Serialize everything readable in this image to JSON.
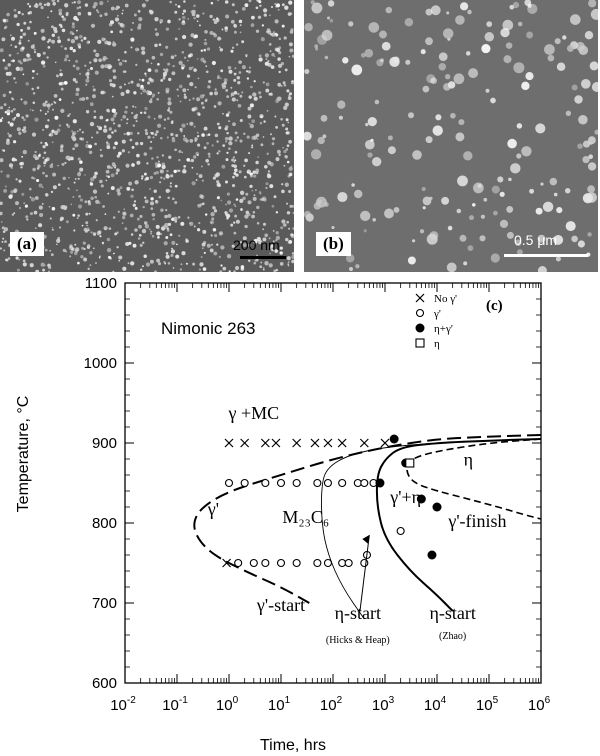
{
  "panels": {
    "a": {
      "label": "(a)",
      "scale_label": "200 nm"
    },
    "b": {
      "label": "(b)",
      "scale_label": "0.5 μm"
    },
    "c": {
      "label": "(c)"
    }
  },
  "chart_data": {
    "type": "scatter",
    "title": "Nimonic 263",
    "xlabel": "Time, hrs",
    "ylabel": "Temperature, °C",
    "xscale": "log",
    "xlim": [
      0.01,
      1000000
    ],
    "ylim": [
      600,
      1100
    ],
    "x_ticks": [
      "10-2",
      "10-1",
      "100",
      "101",
      "102",
      "103",
      "104",
      "105",
      "106"
    ],
    "y_ticks": [
      600,
      700,
      800,
      900,
      1000,
      1100
    ],
    "legend": {
      "placement": "top-right",
      "entries": [
        {
          "symbol": "×",
          "label": "No γ'"
        },
        {
          "symbol": "○",
          "label": "γ'"
        },
        {
          "symbol": "●",
          "label": "η+γ'"
        },
        {
          "symbol": "□",
          "label": "η"
        }
      ]
    },
    "series": [
      {
        "name": "No γ'",
        "marker": "x",
        "points": [
          [
            1,
            900
          ],
          [
            2,
            900
          ],
          [
            5,
            900
          ],
          [
            8,
            900
          ],
          [
            20,
            900
          ],
          [
            45,
            900
          ],
          [
            80,
            900
          ],
          [
            150,
            900
          ],
          [
            400,
            900
          ],
          [
            1000,
            900
          ],
          [
            0.9,
            750
          ]
        ]
      },
      {
        "name": "γ'",
        "marker": "circle",
        "points": [
          [
            1,
            850
          ],
          [
            2,
            850
          ],
          [
            5,
            850
          ],
          [
            10,
            850
          ],
          [
            20,
            850
          ],
          [
            50,
            850
          ],
          [
            80,
            850
          ],
          [
            150,
            850
          ],
          [
            300,
            850
          ],
          [
            400,
            850
          ],
          [
            600,
            850
          ],
          [
            1.5,
            750
          ],
          [
            3,
            750
          ],
          [
            5,
            750
          ],
          [
            10,
            750
          ],
          [
            20,
            750
          ],
          [
            50,
            750
          ],
          [
            80,
            750
          ],
          [
            150,
            750
          ],
          [
            200,
            750
          ],
          [
            400,
            750
          ],
          [
            450,
            760
          ],
          [
            2000,
            790
          ]
        ]
      },
      {
        "name": "η+γ'",
        "marker": "filled-circle",
        "points": [
          [
            1500,
            905
          ],
          [
            2500,
            875
          ],
          [
            800,
            850
          ],
          [
            5000,
            830
          ],
          [
            10000,
            820
          ],
          [
            8000,
            760
          ]
        ]
      },
      {
        "name": "η",
        "marker": "square",
        "points": [
          [
            3000,
            875
          ]
        ]
      }
    ],
    "curves": [
      {
        "label": "γ'-start",
        "style": "dashed",
        "points": [
          [
            1000000,
            910
          ],
          [
            100000,
            908
          ],
          [
            10000,
            905
          ],
          [
            1000,
            895
          ],
          [
            100,
            880
          ],
          [
            10,
            860
          ],
          [
            1,
            840
          ],
          [
            0.3,
            820
          ],
          [
            0.2,
            800
          ],
          [
            0.25,
            780
          ],
          [
            0.5,
            760
          ],
          [
            2,
            740
          ],
          [
            10,
            720
          ],
          [
            35,
            700
          ]
        ]
      },
      {
        "label": "η-start (Hicks & Heap)",
        "style": "thin-solid",
        "points": [
          [
            1000000,
            905
          ],
          [
            100000,
            903
          ],
          [
            10000,
            900
          ],
          [
            1000,
            895
          ],
          [
            200,
            885
          ],
          [
            80,
            870
          ],
          [
            60,
            850
          ],
          [
            60,
            800
          ],
          [
            80,
            760
          ],
          [
            150,
            720
          ],
          [
            400,
            680
          ]
        ]
      },
      {
        "label": "η-start (Zhao)",
        "style": "solid",
        "points": [
          [
            1000000,
            905
          ],
          [
            100000,
            903
          ],
          [
            10000,
            900
          ],
          [
            2000,
            895
          ],
          [
            1000,
            880
          ],
          [
            700,
            860
          ],
          [
            700,
            820
          ],
          [
            1000,
            780
          ],
          [
            3000,
            740
          ],
          [
            10000,
            710
          ],
          [
            20000,
            690
          ]
        ]
      },
      {
        "label": "γ'-finish",
        "style": "short-dashed",
        "points": [
          [
            1000000,
            905
          ],
          [
            100000,
            900
          ],
          [
            10000,
            890
          ],
          [
            3000,
            880
          ],
          [
            2500,
            865
          ],
          [
            3500,
            850
          ],
          [
            10000,
            840
          ],
          [
            40000,
            830
          ],
          [
            150000,
            820
          ],
          [
            500000,
            810
          ],
          [
            1000000,
            805
          ]
        ]
      }
    ],
    "annotations": [
      {
        "text": "γ +MC",
        "x": 3,
        "y": 930
      },
      {
        "text": "γ'",
        "x": 0.5,
        "y": 810
      },
      {
        "text": "M₂₃C₆",
        "x": 30,
        "y": 800
      },
      {
        "text": "γ'+η",
        "x": 2500,
        "y": 825
      },
      {
        "text": "η",
        "x": 40000,
        "y": 872
      },
      {
        "text": "γ'-finish",
        "x": 60000,
        "y": 795
      },
      {
        "text": "γ'-start",
        "x": 10,
        "y": 690
      },
      {
        "text": "η-start",
        "x": 300,
        "y": 680
      },
      {
        "text": "(Hicks & Heap)",
        "x": 300,
        "y": 650
      },
      {
        "text": "η-start",
        "x": 20000,
        "y": 680
      },
      {
        "text": "(Zhao)",
        "x": 20000,
        "y": 655
      }
    ]
  },
  "colors": {
    "line": "#000000",
    "micrograph_a": "#5a5a5a",
    "micrograph_b": "#6e6e6e"
  }
}
